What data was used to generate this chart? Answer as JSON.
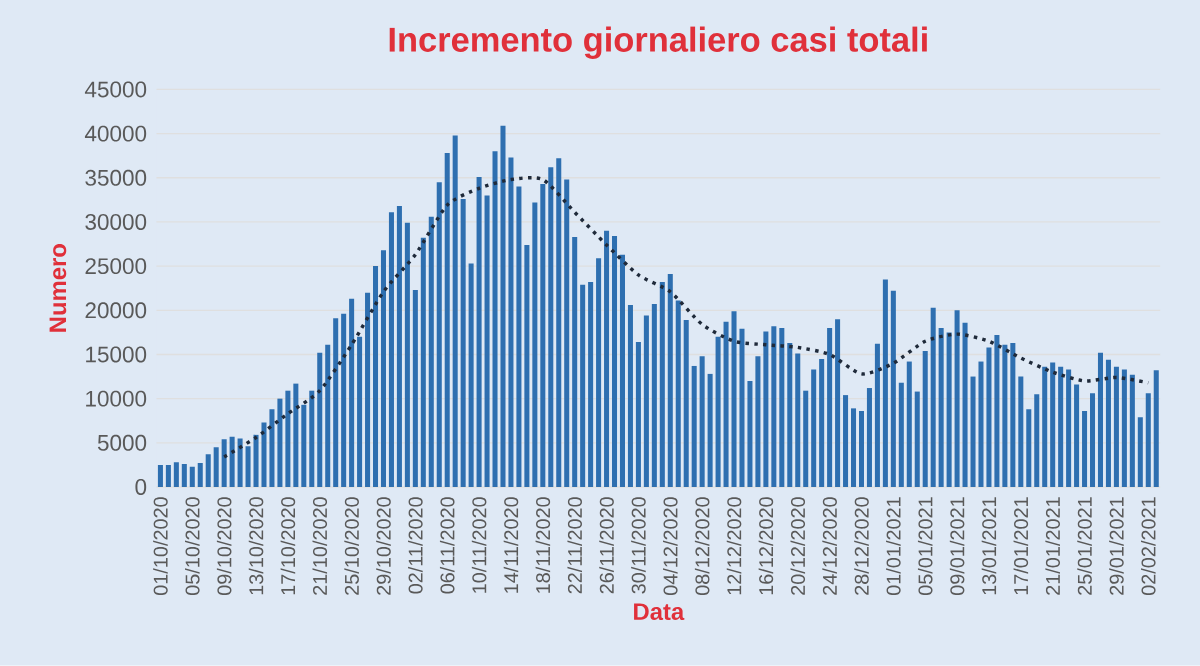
{
  "chart_data": {
    "type": "bar",
    "title": "Incremento giornaliero casi totali",
    "xlabel": "Data",
    "ylabel": "Numero",
    "categories": [
      "01/10/2020",
      null,
      null,
      null,
      "05/10/2020",
      null,
      null,
      null,
      "09/10/2020",
      null,
      null,
      null,
      "13/10/2020",
      null,
      null,
      null,
      "17/10/2020",
      null,
      null,
      null,
      "21/10/2020",
      null,
      null,
      null,
      "25/10/2020",
      null,
      null,
      null,
      "29/10/2020",
      null,
      null,
      null,
      "02/11/2020",
      null,
      null,
      null,
      "06/11/2020",
      null,
      null,
      null,
      "10/11/2020",
      null,
      null,
      null,
      "14/11/2020",
      null,
      null,
      null,
      "18/11/2020",
      null,
      null,
      null,
      "22/11/2020",
      null,
      null,
      null,
      "26/11/2020",
      null,
      null,
      null,
      "30/11/2020",
      null,
      null,
      null,
      "04/12/2020",
      null,
      null,
      null,
      "08/12/2020",
      null,
      null,
      null,
      "12/12/2020",
      null,
      null,
      null,
      "16/12/2020",
      null,
      null,
      null,
      "20/12/2020",
      null,
      null,
      null,
      "24/12/2020",
      null,
      null,
      null,
      "28/12/2020",
      null,
      null,
      null,
      "01/01/2021",
      null,
      null,
      null,
      "05/01/2021",
      null,
      null,
      null,
      "09/01/2021",
      null,
      null,
      null,
      "13/01/2021",
      null,
      null,
      null,
      "17/01/2021",
      null,
      null,
      null,
      "21/01/2021",
      null,
      null,
      null,
      "25/01/2021",
      null,
      null,
      null,
      "29/01/2021",
      null,
      null,
      null,
      "02/02/2021",
      null
    ],
    "series": [
      {
        "color": "#2e6fb0",
        "values": [
          2500,
          2500,
          2800,
          2600,
          2300,
          2700,
          3700,
          4500,
          5400,
          5700,
          5500,
          4600,
          5900,
          7300,
          8800,
          10000,
          10900,
          11700,
          9300,
          10900,
          15200,
          16100,
          19100,
          19600,
          21300,
          17000,
          22000,
          25000,
          26800,
          31100,
          31800,
          29900,
          22300,
          28200,
          30600,
          34500,
          37800,
          39800,
          32600,
          25300,
          35100,
          33000,
          38000,
          40900,
          37300,
          34000,
          27400,
          32200,
          34300,
          36200,
          37200,
          34800,
          28300,
          22900,
          23200,
          25900,
          29000,
          28400,
          26300,
          20600,
          16400,
          19400,
          20700,
          23200,
          24100,
          21100,
          18900,
          13700,
          14800,
          12800,
          17000,
          18700,
          19900,
          17900,
          12000,
          14800,
          17600,
          18200,
          18000,
          16300,
          15100,
          10900,
          13300,
          14500,
          18000,
          19000,
          10400,
          8900,
          8600,
          11200,
          16200,
          23500,
          22200,
          11800,
          14200,
          10800,
          15400,
          20300,
          18000,
          17500,
          20000,
          18600,
          12500,
          14200,
          15800,
          17200,
          16100,
          16300,
          12500,
          8800,
          10500,
          13600,
          14100,
          13600,
          13300,
          11600,
          8600,
          10600,
          15200,
          14400,
          13600,
          13300,
          12700,
          7900,
          10600,
          13200
        ]
      },
      {
        "type": "line",
        "color": "#1f2a3a",
        "line_style": "dotted",
        "x": [
          "09/10/2020",
          "13/10/2020",
          "17/10/2020",
          "21/10/2020",
          "25/10/2020",
          "29/10/2020",
          "02/11/2020",
          "06/11/2020",
          "10/11/2020",
          "14/11/2020",
          "18/11/2020",
          "22/11/2020",
          "26/11/2020",
          "30/11/2020",
          "04/12/2020",
          "08/12/2020",
          "12/12/2020",
          "16/12/2020",
          "20/12/2020",
          "24/12/2020",
          "28/12/2020",
          "01/01/2021",
          "05/01/2021",
          "09/01/2021",
          "13/01/2021",
          "17/01/2021",
          "21/01/2021",
          "25/01/2021",
          "29/01/2021",
          "02/02/2021"
        ],
        "values": [
          3400,
          5600,
          8300,
          10900,
          16100,
          22100,
          26300,
          31900,
          33800,
          34800,
          34800,
          31100,
          27400,
          24000,
          22100,
          18400,
          16500,
          16100,
          15800,
          15000,
          12800,
          14000,
          16500,
          17300,
          16500,
          14600,
          13000,
          12000,
          12400,
          11800
        ]
      }
    ],
    "ylim": [
      0,
      45000
    ],
    "yticks": [
      0,
      5000,
      10000,
      15000,
      20000,
      25000,
      30000,
      35000,
      40000,
      45000
    ],
    "grid": "y"
  }
}
